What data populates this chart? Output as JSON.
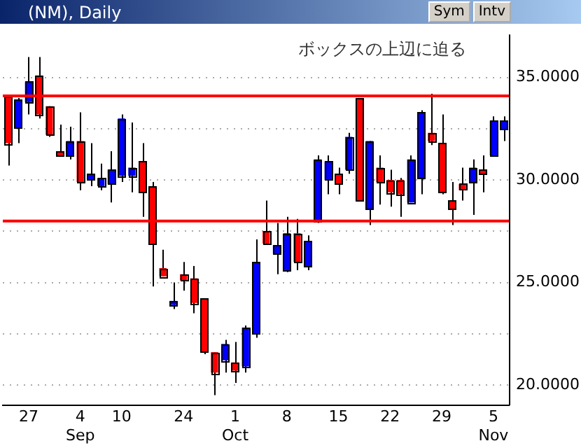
{
  "chart_data": {
    "type": "candlestick",
    "title": "(NM), Daily",
    "categories": [
      null,
      null,
      "27",
      null,
      null,
      null,
      null,
      "4\nSep",
      null,
      null,
      null,
      "10",
      null,
      null,
      null,
      null,
      null,
      "24",
      null,
      null,
      null,
      null,
      "1\nOct",
      null,
      null,
      null,
      null,
      "8",
      null,
      null,
      null,
      null,
      "15",
      null,
      null,
      null,
      null,
      "22",
      null,
      null,
      null,
      null,
      "29",
      null,
      null,
      null,
      null,
      "5\nNov",
      null
    ],
    "ohlc": [
      [
        34.1,
        34.1,
        30.7,
        31.8
      ],
      [
        32.5,
        34.0,
        31.8,
        33.9
      ],
      [
        33.8,
        36.0,
        33.2,
        34.8
      ],
      [
        35.1,
        36.0,
        33.0,
        33.2
      ],
      [
        33.6,
        33.6,
        32.1,
        32.2
      ],
      [
        31.4,
        32.7,
        31.2,
        31.2
      ],
      [
        31.2,
        32.6,
        31.0,
        31.9
      ],
      [
        31.9,
        33.3,
        29.5,
        29.9
      ],
      [
        30.0,
        31.8,
        29.7,
        30.3
      ],
      [
        29.7,
        30.8,
        29.5,
        30.1
      ],
      [
        29.8,
        31.4,
        28.9,
        30.5
      ],
      [
        30.2,
        33.2,
        29.9,
        33.0
      ],
      [
        30.2,
        32.8,
        29.4,
        30.6
      ],
      [
        30.9,
        31.8,
        28.2,
        29.4
      ],
      [
        29.7,
        29.9,
        24.8,
        26.9
      ],
      [
        25.7,
        26.6,
        25.3,
        25.3
      ],
      [
        23.9,
        25.0,
        23.7,
        24.1
      ],
      [
        25.4,
        26.0,
        24.6,
        25.1
      ],
      [
        25.2,
        25.8,
        23.5,
        24.0
      ],
      [
        24.2,
        24.2,
        21.5,
        21.6
      ],
      [
        21.6,
        21.6,
        19.5,
        20.6
      ],
      [
        21.2,
        22.2,
        20.6,
        22.0
      ],
      [
        21.1,
        22.1,
        20.1,
        20.7
      ],
      [
        20.9,
        22.9,
        20.6,
        22.8
      ],
      [
        22.5,
        27.1,
        22.3,
        26.0
      ],
      [
        27.5,
        29.0,
        26.9,
        26.9
      ],
      [
        26.4,
        27.9,
        25.4,
        26.8
      ],
      [
        25.6,
        28.2,
        25.5,
        27.4
      ],
      [
        27.4,
        28.1,
        25.6,
        26.0
      ],
      [
        25.8,
        27.3,
        25.6,
        27.0
      ],
      [
        28.0,
        31.2,
        27.9,
        31.0
      ],
      [
        30.0,
        31.2,
        29.3,
        30.9
      ],
      [
        30.3,
        30.6,
        29.3,
        29.8
      ],
      [
        30.5,
        32.3,
        30.3,
        32.1
      ],
      [
        34.0,
        34.0,
        29.0,
        29.0
      ],
      [
        28.6,
        31.9,
        27.8,
        31.9
      ],
      [
        30.6,
        31.2,
        28.8,
        29.9
      ],
      [
        30.0,
        30.5,
        28.7,
        29.4
      ],
      [
        30.0,
        30.1,
        28.2,
        29.3
      ],
      [
        28.9,
        31.2,
        28.9,
        31.0
      ],
      [
        30.1,
        33.4,
        29.3,
        33.3
      ],
      [
        32.3,
        34.2,
        31.7,
        31.9
      ],
      [
        31.8,
        33.2,
        29.3,
        29.4
      ],
      [
        29.0,
        29.9,
        27.8,
        28.6
      ],
      [
        29.8,
        30.6,
        29.0,
        29.5
      ],
      [
        29.9,
        31.0,
        28.3,
        30.6
      ],
      [
        30.5,
        31.2,
        29.4,
        30.3
      ],
      [
        31.2,
        33.1,
        31.2,
        32.9
      ],
      [
        32.5,
        33.1,
        31.9,
        32.9
      ]
    ],
    "colors": [
      "#ff0000",
      "#0000ff",
      "#0000ff",
      "#ff0000",
      "#ff0000",
      "#ff0000",
      "#0000ff",
      "#ff0000",
      "#0000ff",
      "#0000ff",
      "#0000ff",
      "#0000ff",
      "#0000ff",
      "#ff0000",
      "#ff0000",
      "#ff0000",
      "#0000ff",
      "#ff0000",
      "#ff0000",
      "#ff0000",
      "#ff0000",
      "#0000ff",
      "#ff0000",
      "#0000ff",
      "#0000ff",
      "#ff0000",
      "#0000ff",
      "#0000ff",
      "#ff0000",
      "#0000ff",
      "#0000ff",
      "#0000ff",
      "#ff0000",
      "#0000ff",
      "#ff0000",
      "#0000ff",
      "#ff0000",
      "#ff0000",
      "#ff0000",
      "#0000ff",
      "#0000ff",
      "#ff0000",
      "#ff0000",
      "#ff0000",
      "#ff0000",
      "#0000ff",
      "#ff0000",
      "#0000ff",
      "#0000ff"
    ],
    "ylim": [
      19.0,
      37.1
    ],
    "yticks": [
      {
        "value": 20,
        "label": "20.0000"
      },
      {
        "value": 22.5,
        "label": null
      },
      {
        "value": 25,
        "label": "25.0000"
      },
      {
        "value": 27.5,
        "label": null
      },
      {
        "value": 30,
        "label": "30.0000"
      },
      {
        "value": 32.5,
        "label": null
      },
      {
        "value": 35,
        "label": "35.0000"
      }
    ],
    "grid": "y",
    "ref_lines": [
      {
        "axis": "y",
        "value": 34.1,
        "color": "#ff0000"
      },
      {
        "axis": "y",
        "value": 28.0,
        "color": "#ff0000"
      }
    ],
    "annotations": [
      "ボックスの上辺に迫る",
      "Sym",
      "Intv"
    ]
  }
}
